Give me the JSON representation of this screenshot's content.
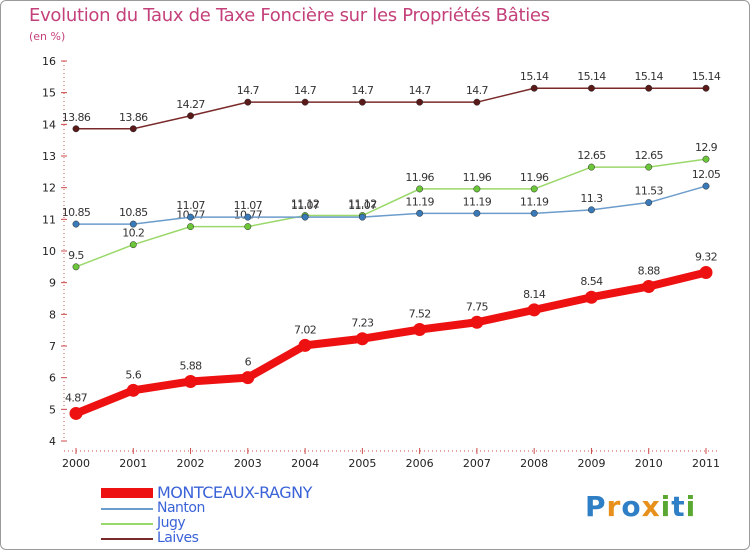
{
  "title": "Evolution du Taux de Taxe Foncière sur les Propriétés Bâties",
  "unit": "(en %)",
  "logo": {
    "text": "Proxiti",
    "letters": [
      "P",
      "r",
      "o",
      "x",
      "i",
      "t",
      "i"
    ],
    "colors": [
      "#2e7fc6",
      "#e8901c",
      "#2e7fc6",
      "#e8901c",
      "#5aa832",
      "#2e7fc6",
      "#5aa832"
    ]
  },
  "chart_data": {
    "type": "line",
    "title": "Evolution du Taux de Taxe Foncière sur les Propriétés Bâties",
    "ylabel": "(en %)",
    "xlabel": "",
    "x": [
      "2000",
      "2001",
      "2002",
      "2003",
      "2004",
      "2005",
      "2006",
      "2007",
      "2008",
      "2009",
      "2010",
      "2011"
    ],
    "ylim": [
      4,
      16
    ],
    "yticks": [
      4,
      5,
      6,
      7,
      8,
      9,
      10,
      11,
      12,
      13,
      14,
      15,
      16
    ],
    "series": [
      {
        "name": "Laives",
        "color": "#7a2a2a",
        "dot": "#5a1a1a",
        "emphasis": false,
        "values": [
          13.86,
          13.86,
          14.27,
          14.7,
          14.7,
          14.7,
          14.7,
          14.7,
          15.14,
          15.14,
          15.14,
          15.14
        ],
        "labels": [
          "13.86",
          "13.86",
          "14.27",
          "14.7",
          "14.7",
          "14.7",
          "14.7",
          "14.7",
          "15.14",
          "15.14",
          "15.14",
          "15.14"
        ]
      },
      {
        "name": "Jugy",
        "color": "#9ad86a",
        "dot": "#6cc63a",
        "emphasis": false,
        "values": [
          9.5,
          10.2,
          10.77,
          10.77,
          11.12,
          11.12,
          11.96,
          11.96,
          11.96,
          12.65,
          12.65,
          12.9
        ],
        "labels": [
          "9.5",
          "10.2",
          "10.77",
          "10.77",
          "11.12",
          "11.12",
          "11.96",
          "11.96",
          "11.96",
          "12.65",
          "12.65",
          "12.9"
        ]
      },
      {
        "name": "Nanton",
        "color": "#6c9ccc",
        "dot": "#3a7ab8",
        "emphasis": false,
        "values": [
          10.85,
          10.85,
          11.07,
          11.07,
          11.07,
          11.07,
          11.19,
          11.19,
          11.19,
          11.3,
          11.53,
          12.05
        ],
        "labels": [
          "10.85",
          "10.85",
          "11.07",
          "11.07",
          "11.07",
          "11.07",
          "11.19",
          "11.19",
          "11.19",
          "11.3",
          "11.53",
          "12.05"
        ]
      },
      {
        "name": "MONTCEAUX-RAGNY",
        "color": "#ee1111",
        "dot": "#ee1111",
        "emphasis": true,
        "values": [
          4.87,
          5.6,
          5.88,
          6,
          7.02,
          7.23,
          7.52,
          7.75,
          8.14,
          8.54,
          8.88,
          9.32
        ],
        "labels": [
          "4.87",
          "5.6",
          "5.88",
          "6",
          "7.02",
          "7.23",
          "7.52",
          "7.75",
          "8.14",
          "8.54",
          "8.88",
          "9.32"
        ]
      }
    ],
    "legend": [
      {
        "name": "MONTCEAUX-RAGNY",
        "color": "#ee1111"
      },
      {
        "name": "Nanton",
        "color": "#6c9ccc"
      },
      {
        "name": "Jugy",
        "color": "#9ad86a"
      },
      {
        "name": "Laives",
        "color": "#7a2a2a"
      }
    ],
    "grid": false,
    "legend_position": "bottom-left"
  }
}
